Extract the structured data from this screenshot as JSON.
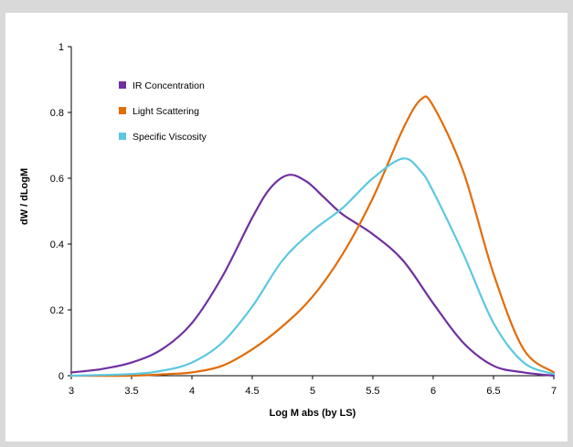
{
  "chart_data": {
    "type": "line",
    "title": "",
    "xlabel": "Log M abs (by LS)",
    "ylabel": "dW / dLogM",
    "xlim": [
      3,
      7
    ],
    "ylim": [
      0,
      1
    ],
    "x_ticks": [
      "3",
      "3.5",
      "4",
      "4.5",
      "5",
      "5.5",
      "6",
      "6.5",
      "7"
    ],
    "y_ticks": [
      "0",
      "0.2",
      "0.4",
      "0.6",
      "0.8",
      "1"
    ],
    "grid": false,
    "legend_position": "top-left",
    "series": [
      {
        "name": "IR Concentration",
        "color": "#7030a0",
        "points": [
          [
            3.0,
            0.01
          ],
          [
            3.25,
            0.02
          ],
          [
            3.5,
            0.04
          ],
          [
            3.75,
            0.08
          ],
          [
            4.0,
            0.16
          ],
          [
            4.25,
            0.3
          ],
          [
            4.5,
            0.48
          ],
          [
            4.65,
            0.57
          ],
          [
            4.8,
            0.61
          ],
          [
            4.95,
            0.59
          ],
          [
            5.1,
            0.54
          ],
          [
            5.25,
            0.49
          ],
          [
            5.5,
            0.43
          ],
          [
            5.75,
            0.35
          ],
          [
            6.0,
            0.22
          ],
          [
            6.25,
            0.1
          ],
          [
            6.5,
            0.03
          ],
          [
            6.75,
            0.01
          ],
          [
            7.0,
            0.0
          ]
        ]
      },
      {
        "name": "Light Scattering",
        "color": "#e36c09",
        "points": [
          [
            3.0,
            0.0
          ],
          [
            3.5,
            0.0
          ],
          [
            3.8,
            0.005
          ],
          [
            4.0,
            0.01
          ],
          [
            4.25,
            0.03
          ],
          [
            4.5,
            0.08
          ],
          [
            4.75,
            0.15
          ],
          [
            5.0,
            0.24
          ],
          [
            5.25,
            0.37
          ],
          [
            5.5,
            0.54
          ],
          [
            5.75,
            0.75
          ],
          [
            5.9,
            0.84
          ],
          [
            6.0,
            0.82
          ],
          [
            6.25,
            0.62
          ],
          [
            6.5,
            0.31
          ],
          [
            6.75,
            0.08
          ],
          [
            7.0,
            0.01
          ]
        ]
      },
      {
        "name": "Specific Viscosity",
        "color": "#5bc8e2",
        "points": [
          [
            3.0,
            0.0
          ],
          [
            3.5,
            0.005
          ],
          [
            3.75,
            0.015
          ],
          [
            4.0,
            0.04
          ],
          [
            4.25,
            0.1
          ],
          [
            4.5,
            0.21
          ],
          [
            4.75,
            0.35
          ],
          [
            5.0,
            0.44
          ],
          [
            5.25,
            0.51
          ],
          [
            5.5,
            0.6
          ],
          [
            5.75,
            0.66
          ],
          [
            5.9,
            0.62
          ],
          [
            6.0,
            0.56
          ],
          [
            6.25,
            0.37
          ],
          [
            6.5,
            0.16
          ],
          [
            6.75,
            0.04
          ],
          [
            7.0,
            0.005
          ]
        ]
      }
    ]
  }
}
